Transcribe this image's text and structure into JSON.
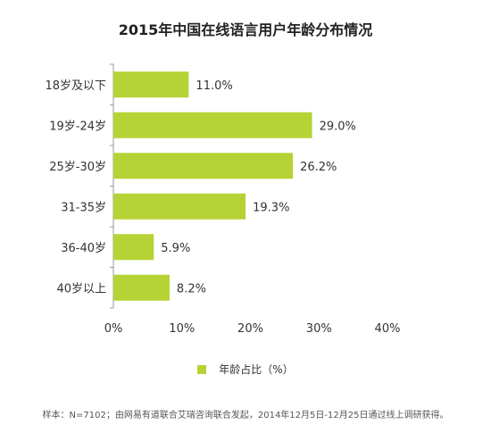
{
  "chart_data": {
    "type": "bar",
    "orientation": "horizontal",
    "title": "2015年中国在线语言用户年龄分布情况",
    "categories": [
      "18岁及以下",
      "19岁-24岁",
      "25岁-30岁",
      "31-35岁",
      "36-40岁",
      "40岁以上"
    ],
    "series": [
      {
        "name": "年龄占比（%）",
        "values": [
          11.0,
          29.0,
          26.2,
          19.3,
          5.9,
          8.2
        ],
        "color": "#b5d334"
      }
    ],
    "data_labels": [
      "11.0%",
      "29.0%",
      "26.2%",
      "19.3%",
      "5.9%",
      "8.2%"
    ],
    "xlim": [
      0,
      40
    ],
    "x_ticks": [
      0,
      10,
      20,
      30,
      40
    ],
    "x_tick_labels": [
      "0%",
      "10%",
      "20%",
      "30%",
      "40%"
    ],
    "grid": false,
    "legend_position": "bottom"
  },
  "footnote": "样本：N=7102；由网易有道联合艾瑞咨询联合发起，2014年12月5日-12月25日通过线上调研获得。"
}
